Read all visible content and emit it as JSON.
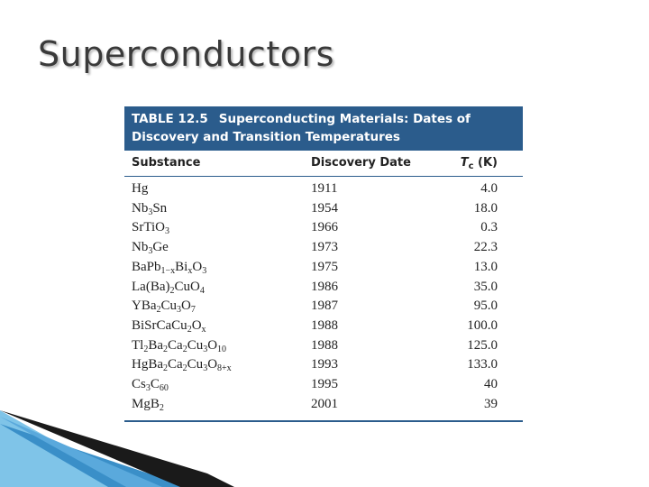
{
  "header": {
    "title": "Superconductors"
  },
  "table": {
    "label": "TABLE 12.5",
    "caption": "Superconducting Materials: Dates of Discovery and Transition Temperatures",
    "columns": [
      [
        "Substance"
      ],
      [
        "Discovery Date"
      ],
      [
        "T",
        "c",
        " (K)"
      ]
    ],
    "rows": [
      [
        [
          "Hg"
        ],
        "1911",
        "4.0"
      ],
      [
        [
          "Nb",
          "3",
          "Sn"
        ],
        "1954",
        "18.0"
      ],
      [
        [
          "SrTiO",
          "3"
        ],
        "1966",
        "0.3"
      ],
      [
        [
          "Nb",
          "3",
          "Ge"
        ],
        "1973",
        "22.3"
      ],
      [
        [
          "BaPb",
          "1−x",
          "Bi",
          "x",
          "O",
          "3"
        ],
        "1975",
        "13.0"
      ],
      [
        [
          "La(Ba)",
          "2",
          "CuO",
          "4"
        ],
        "1986",
        "35.0"
      ],
      [
        [
          "YBa",
          "2",
          "Cu",
          "3",
          "O",
          "7"
        ],
        "1987",
        "95.0"
      ],
      [
        [
          "BiSrCaCu",
          "2",
          "O",
          "x"
        ],
        "1988",
        "100.0"
      ],
      [
        [
          "Tl",
          "2",
          "Ba",
          "2",
          "Ca",
          "2",
          "Cu",
          "3",
          "O",
          "10"
        ],
        "1988",
        "125.0"
      ],
      [
        [
          "HgBa",
          "2",
          "Ca",
          "2",
          "Cu",
          "3",
          "O",
          "8+x"
        ],
        "1993",
        "133.0"
      ],
      [
        [
          "Cs",
          "3",
          "C",
          "60"
        ],
        "1995",
        "40"
      ],
      [
        [
          "MgB",
          "2"
        ],
        "2001",
        "39"
      ]
    ]
  }
}
